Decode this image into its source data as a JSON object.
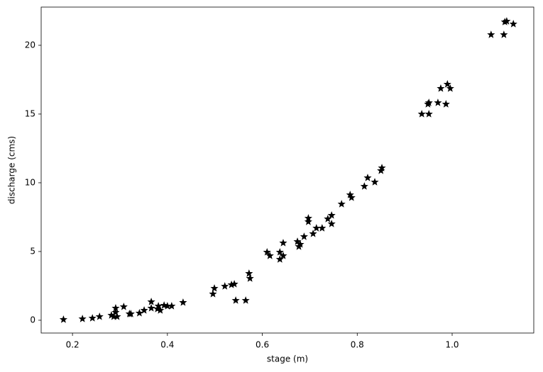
{
  "chart_data": {
    "type": "scatter",
    "xlabel": "stage (m)",
    "ylabel": "discharge (cms)",
    "xlim": [
      0.134,
      1.172
    ],
    "ylim": [
      -0.93,
      22.78
    ],
    "xticks": [
      0.2,
      0.4,
      0.6,
      0.8,
      {
        "value": 1,
        "label": "1.0"
      }
    ],
    "yticks": [
      0,
      5,
      10,
      15,
      20
    ],
    "grid": false,
    "series": [
      {
        "color": "#000000",
        "x": [
          0.181,
          0.221,
          0.242,
          0.257,
          0.282,
          0.291,
          0.291,
          0.287,
          0.294,
          0.308,
          0.32,
          0.323,
          0.341,
          0.351,
          0.366,
          0.366,
          0.379,
          0.381,
          0.385,
          0.393,
          0.4,
          0.409,
          0.433,
          0.496,
          0.499,
          0.521,
          0.535,
          0.541,
          0.544,
          0.565,
          0.572,
          0.574,
          0.61,
          0.616,
          0.637,
          0.637,
          0.644,
          0.644,
          0.674,
          0.677,
          0.68,
          0.688,
          0.697,
          0.697,
          0.707,
          0.714,
          0.726,
          0.738,
          0.746,
          0.746,
          0.767,
          0.785,
          0.788,
          0.815,
          0.822,
          0.837,
          0.85,
          0.852,
          0.936,
          0.949,
          0.951,
          0.951,
          0.97,
          0.976,
          0.987,
          0.99,
          0.996,
          1.082,
          1.109,
          1.111,
          1.115,
          1.129
        ],
        "values": [
          0.05,
          0.1,
          0.15,
          0.26,
          0.36,
          0.88,
          0.57,
          0.26,
          0.26,
          0.98,
          0.46,
          0.46,
          0.52,
          0.72,
          1.34,
          0.88,
          0.82,
          1.03,
          0.72,
          1.08,
          1.03,
          1.03,
          1.29,
          1.91,
          2.32,
          2.47,
          2.58,
          2.63,
          1.44,
          1.44,
          3.4,
          3.04,
          4.95,
          4.69,
          4.43,
          4.95,
          4.69,
          5.62,
          5.72,
          5.36,
          5.52,
          6.08,
          7.42,
          7.16,
          6.29,
          6.7,
          6.7,
          7.37,
          7.63,
          7.01,
          8.45,
          9.12,
          8.92,
          9.74,
          10.36,
          10.05,
          10.88,
          11.08,
          15.0,
          15.72,
          15.82,
          15.0,
          15.82,
          16.86,
          15.72,
          17.17,
          16.86,
          20.77,
          20.77,
          21.7,
          21.75,
          21.55
        ]
      }
    ]
  }
}
